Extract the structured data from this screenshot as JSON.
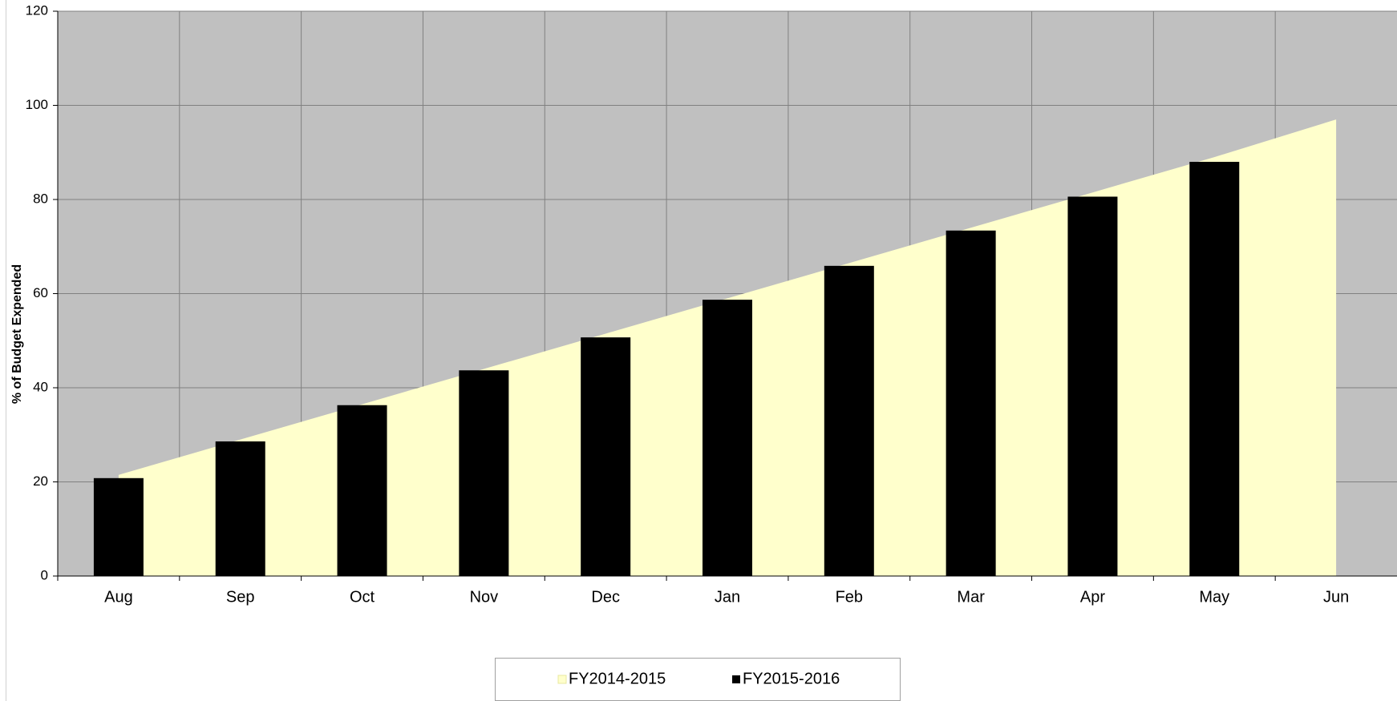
{
  "chart_data": {
    "type": "bar",
    "y_label": "% of Budget Expended",
    "categories": [
      "Aug",
      "Sep",
      "Oct",
      "Nov",
      "Dec",
      "Jan",
      "Feb",
      "Mar",
      "Apr",
      "May",
      "Jun"
    ],
    "series": [
      {
        "name": "FY2014-2015",
        "type": "area",
        "color": "#ffffcc",
        "values": [
          21.5,
          29,
          36.5,
          44,
          51.5,
          59,
          66.5,
          74,
          81.5,
          89,
          97
        ]
      },
      {
        "name": "FY2015-2016",
        "type": "bar",
        "color": "#000000",
        "values": [
          20.8,
          28.6,
          36.3,
          43.7,
          50.7,
          58.7,
          65.9,
          73.4,
          80.6,
          88.0,
          null
        ]
      }
    ],
    "ylim": [
      0,
      120
    ],
    "yticks": [
      0,
      20,
      40,
      60,
      80,
      100,
      120
    ],
    "grid": true,
    "legend": "bottom"
  }
}
